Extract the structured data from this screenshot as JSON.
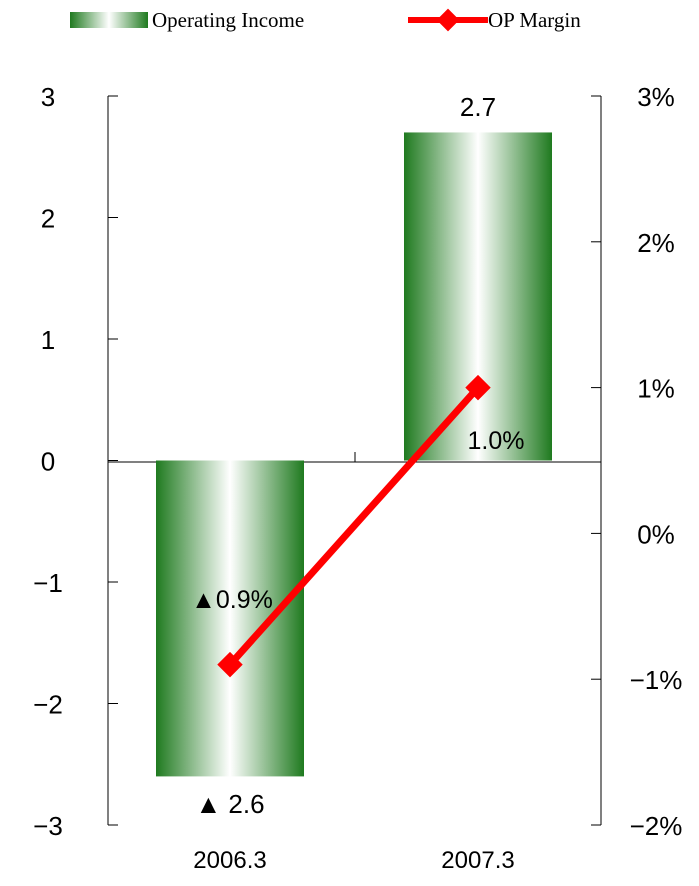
{
  "chart_data": {
    "type": "bar",
    "categories": [
      "2006.3",
      "2007.3"
    ],
    "series": [
      {
        "name": "Operating Income",
        "kind": "bar",
        "axis": "left",
        "values": [
          -2.6,
          2.7
        ],
        "labels": [
          "▲ 2.6",
          "2.7"
        ],
        "color": "#1f7a1f"
      },
      {
        "name": "OP Margin",
        "kind": "line",
        "axis": "right",
        "values": [
          -0.9,
          1.0
        ],
        "labels": [
          "▲0.9%",
          "1.0%"
        ],
        "color": "#ff0000"
      }
    ],
    "y_left": {
      "ylim": [
        -3,
        3
      ],
      "ticks": [
        "−3",
        "−2",
        "−1",
        "0",
        "1",
        "2",
        "3"
      ]
    },
    "y_right": {
      "ylim": [
        -2,
        3
      ],
      "ticks": [
        "−2%",
        "−1%",
        "0%",
        "1%",
        "2%",
        "3%"
      ]
    },
    "legend": {
      "placement": "top"
    },
    "grid": false
  }
}
